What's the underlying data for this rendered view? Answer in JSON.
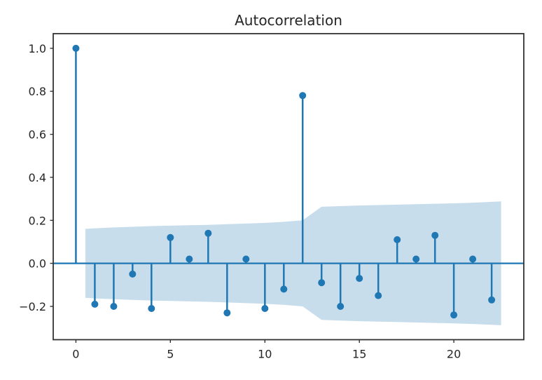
{
  "chart_data": {
    "type": "stem",
    "title": "Autocorrelation",
    "xlabel": "",
    "ylabel": "",
    "x": [
      0,
      1,
      2,
      3,
      4,
      5,
      6,
      7,
      8,
      9,
      10,
      11,
      12,
      13,
      14,
      15,
      16,
      17,
      18,
      19,
      20,
      21,
      22
    ],
    "values": [
      1.0,
      -0.19,
      -0.2,
      -0.05,
      -0.21,
      0.12,
      0.02,
      0.14,
      -0.23,
      0.02,
      -0.21,
      -0.12,
      0.78,
      -0.09,
      -0.2,
      -0.07,
      -0.15,
      0.11,
      0.02,
      0.13,
      -0.24,
      0.02,
      -0.17
    ],
    "xlim": [
      -1.2,
      23.7
    ],
    "ylim": [
      -0.355,
      1.068
    ],
    "grid": false,
    "x_ticks": {
      "values": [
        0,
        5,
        10,
        15,
        20
      ],
      "labels": [
        "0",
        "5",
        "10",
        "15",
        "20"
      ]
    },
    "y_ticks": {
      "values": [
        1.0,
        0.8,
        0.6,
        0.4,
        0.2,
        0.0,
        -0.2
      ],
      "labels": [
        "1.0",
        "0.8",
        "0.6",
        "0.4",
        "0.2",
        "0.0",
        "−0.2"
      ]
    },
    "confidence_band": {
      "symmetric": true,
      "lags": [
        0.5,
        1,
        2,
        3,
        4,
        5,
        6,
        7,
        8,
        9,
        10,
        11,
        12,
        13,
        14,
        15,
        16,
        17,
        18,
        19,
        20,
        21,
        22,
        22.5
      ],
      "upper": [
        0.16,
        0.163,
        0.167,
        0.17,
        0.173,
        0.175,
        0.177,
        0.179,
        0.182,
        0.185,
        0.188,
        0.193,
        0.2,
        0.263,
        0.266,
        0.269,
        0.271,
        0.273,
        0.275,
        0.277,
        0.279,
        0.282,
        0.286,
        0.288
      ]
    },
    "colors": {
      "stem": "#1f77b4",
      "band": "#1f77b4",
      "band_opacity": 0.25,
      "spine": "#333333",
      "text": "#262626"
    }
  }
}
